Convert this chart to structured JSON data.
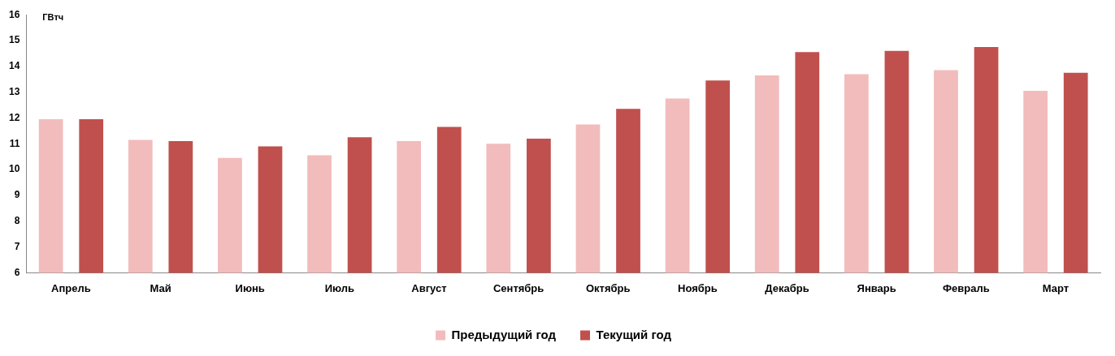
{
  "chart_data": {
    "type": "bar",
    "ylabel": "ГВтч",
    "categories": [
      "Апрель",
      "Май",
      "Июнь",
      "Июль",
      "Август",
      "Сентябрь",
      "Октябрь",
      "Ноябрь",
      "Декабрь",
      "Январь",
      "Февраль",
      "Март"
    ],
    "series": [
      {
        "name": "Предыдущий год",
        "color": "#f2bcbc",
        "values": [
          11.95,
          11.15,
          10.45,
          10.55,
          11.1,
          11.0,
          11.75,
          12.75,
          13.65,
          13.7,
          13.85,
          13.05
        ]
      },
      {
        "name": "Текущий год",
        "color": "#c0504d",
        "values": [
          11.95,
          11.1,
          10.9,
          11.25,
          11.65,
          11.2,
          12.35,
          13.45,
          14.55,
          14.6,
          14.75,
          13.75
        ]
      }
    ],
    "ylim": [
      6,
      16
    ],
    "yticks": [
      6,
      7,
      8,
      9,
      10,
      11,
      12,
      13,
      14,
      15,
      16
    ],
    "grid": false,
    "legend": "bottom"
  }
}
